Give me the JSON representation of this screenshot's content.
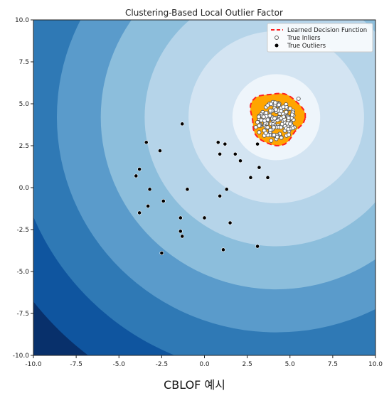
{
  "caption": "CBLOF 예시",
  "chart_data": {
    "type": "scatter",
    "title": "Clustering-Based Local Outlier Factor",
    "xlabel": "",
    "ylabel": "",
    "xlim": [
      -10.0,
      10.0
    ],
    "ylim": [
      -10.0,
      10.0
    ],
    "x_ticks": [
      "-10.0",
      "-7.5",
      "-5.0",
      "-2.5",
      "0.0",
      "2.5",
      "5.0",
      "7.5",
      "10.0"
    ],
    "y_ticks": [
      "-10.0",
      "-7.5",
      "-5.0",
      "-2.5",
      "0.0",
      "2.5",
      "5.0",
      "7.5",
      "10.0"
    ],
    "grid": false,
    "legend_position": "top-right",
    "legend": [
      {
        "label": "Learned Decision Function",
        "style": "dashed-line",
        "color": "#ff2020"
      },
      {
        "label": "True Inliers",
        "style": "hollow-circle",
        "color": "#ffffff"
      },
      {
        "label": "True Outliers",
        "style": "filled-circle",
        "color": "#000000"
      }
    ],
    "background": {
      "type": "filled-contour",
      "colormap": "Blues_r",
      "center": [
        4.2,
        4.2
      ],
      "levels": 7,
      "colors": [
        "#08306b",
        "#0f559f",
        "#2f79b5",
        "#5a9bcb",
        "#8cbedc",
        "#b5d4e9",
        "#d3e4f2",
        "#eef5fb"
      ]
    },
    "inlier_region": {
      "color": "#ffa500",
      "edge_color": "#ff2020",
      "edge_style": "dashed"
    },
    "inlier_cluster": {
      "center": [
        4.0,
        4.0
      ],
      "spread": 0.55,
      "count": 120
    },
    "series": [
      {
        "name": "True Inliers",
        "points": [
          [
            3.4,
            4.5
          ],
          [
            3.6,
            4.8
          ],
          [
            3.8,
            5.0
          ],
          [
            4.0,
            5.1
          ],
          [
            4.3,
            4.9
          ],
          [
            4.6,
            4.7
          ],
          [
            4.8,
            4.5
          ],
          [
            5.0,
            4.1
          ],
          [
            4.9,
            3.7
          ],
          [
            4.7,
            3.4
          ],
          [
            4.4,
            3.2
          ],
          [
            4.1,
            3.1
          ],
          [
            3.8,
            3.2
          ],
          [
            3.5,
            3.4
          ],
          [
            3.3,
            3.7
          ],
          [
            3.2,
            4.1
          ],
          [
            3.7,
            4.3
          ],
          [
            4.0,
            4.6
          ],
          [
            4.4,
            4.4
          ],
          [
            4.6,
            4.0
          ],
          [
            4.3,
            3.7
          ],
          [
            3.9,
            3.8
          ],
          [
            3.6,
            4.0
          ],
          [
            4.1,
            4.1
          ],
          [
            4.2,
            2.9
          ],
          [
            3.9,
            2.8
          ],
          [
            4.5,
            3.0
          ],
          [
            5.2,
            4.3
          ],
          [
            3.1,
            3.9
          ],
          [
            3.5,
            4.2
          ],
          [
            3.5,
            3.1
          ],
          [
            4.8,
            3.1
          ],
          [
            5.1,
            3.7
          ],
          [
            3.0,
            3.6
          ],
          [
            3.2,
            3.3
          ],
          [
            5.5,
            5.3
          ]
        ]
      },
      {
        "name": "True Outliers",
        "points": [
          [
            -1.3,
            3.8
          ],
          [
            -3.4,
            2.7
          ],
          [
            -2.6,
            2.2
          ],
          [
            -3.8,
            1.1
          ],
          [
            -4.0,
            0.7
          ],
          [
            -3.2,
            -0.1
          ],
          [
            -1.0,
            -0.1
          ],
          [
            -3.3,
            -1.1
          ],
          [
            -3.8,
            -1.5
          ],
          [
            -2.4,
            -0.8
          ],
          [
            -1.4,
            -1.8
          ],
          [
            0.8,
            2.7
          ],
          [
            1.2,
            2.6
          ],
          [
            0.9,
            2.0
          ],
          [
            1.8,
            2.0
          ],
          [
            2.1,
            1.6
          ],
          [
            0.9,
            -0.5
          ],
          [
            1.3,
            -0.1
          ],
          [
            0.0,
            -1.8
          ],
          [
            1.5,
            -2.1
          ],
          [
            -1.4,
            -2.6
          ],
          [
            -1.3,
            -2.9
          ],
          [
            1.1,
            -3.7
          ],
          [
            3.1,
            -3.5
          ],
          [
            -2.5,
            -3.9
          ],
          [
            2.7,
            0.6
          ],
          [
            3.7,
            0.6
          ],
          [
            3.1,
            2.6
          ],
          [
            3.2,
            1.2
          ]
        ]
      }
    ]
  }
}
